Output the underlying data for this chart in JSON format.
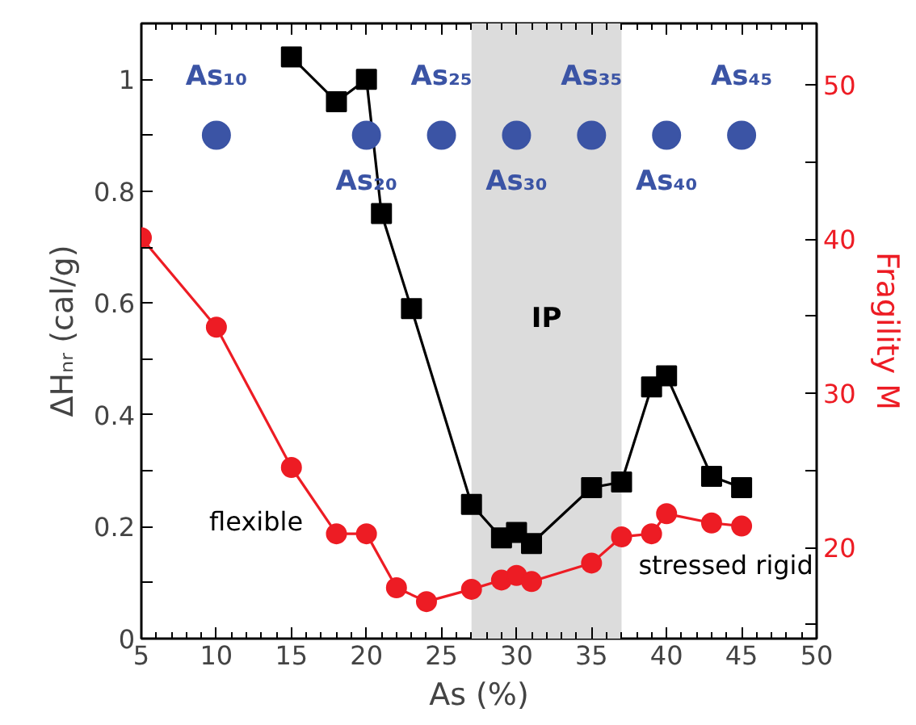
{
  "chart_data": {
    "type": "line",
    "xlabel": "As (%)",
    "ylabel": "ΔHₙᵣ (cal/g)",
    "y2label": "Fragility M",
    "xlim": [
      5,
      50
    ],
    "xticks": [
      5,
      10,
      15,
      20,
      25,
      30,
      35,
      40,
      45,
      50
    ],
    "ylim": [
      0,
      1.1
    ],
    "yticks": [
      0,
      {
        "value": 0.1,
        "label": null
      },
      {
        "value": 0.2,
        "label": "0.2"
      },
      {
        "value": 0.3,
        "label": null
      },
      {
        "value": 0.4,
        "label": "0.4"
      },
      {
        "value": 0.5,
        "label": null
      },
      {
        "value": 0.6,
        "label": "0.6"
      },
      {
        "value": 0.7,
        "label": null
      },
      {
        "value": 0.8,
        "label": "0.8"
      },
      {
        "value": 0.9,
        "label": null
      },
      1
    ],
    "y2lim": [
      14.1,
      54
    ],
    "y2ticks": [
      {
        "value": 15,
        "label": null
      },
      20,
      {
        "value": 25,
        "label": null
      },
      30,
      {
        "value": 35,
        "label": null
      },
      40,
      {
        "value": 45,
        "label": null
      },
      50
    ],
    "grid": false,
    "marker": "square",
    "line_style": "solid",
    "series": [
      {
        "color": "#000000",
        "x": [
          15,
          18,
          20,
          21,
          23,
          27,
          29,
          30,
          31,
          35,
          37,
          39,
          40,
          43,
          45
        ],
        "values": [
          1.04,
          0.96,
          1.0,
          0.76,
          0.59,
          0.24,
          0.18,
          0.19,
          0.17,
          0.27,
          0.28,
          0.45,
          0.47,
          0.29,
          0.27
        ]
      },
      {
        "marker": "circle",
        "color": "#ed1c24",
        "axis": "y2",
        "x": [
          5,
          10,
          15,
          18,
          20,
          22,
          24,
          27,
          29,
          30,
          31,
          35,
          37,
          39,
          40,
          43,
          45
        ],
        "values": [
          40.1,
          34.3,
          25.2,
          20.9,
          20.9,
          17.4,
          16.5,
          17.3,
          17.9,
          18.2,
          17.8,
          19.0,
          20.7,
          20.9,
          22.2,
          21.6,
          21.4
        ]
      },
      {
        "type": "scatter",
        "marker": "circle",
        "color": "#3b54a5",
        "x": [
          10,
          20,
          25,
          30,
          35,
          40,
          45
        ],
        "values": [
          0.9,
          0.9,
          0.9,
          0.9,
          0.9,
          0.9,
          0.9
        ]
      }
    ],
    "bands": [
      {
        "axis": "x",
        "from": 27,
        "to": 37,
        "label": "IP",
        "color": "#dcdcdc"
      }
    ],
    "annotations": [
      "As₁₀",
      "As₂₀",
      "As₂₅",
      "As₃₀",
      "As₃₅",
      "As₄₀",
      "As₄₅",
      "flexible",
      "stressed rigid"
    ]
  }
}
